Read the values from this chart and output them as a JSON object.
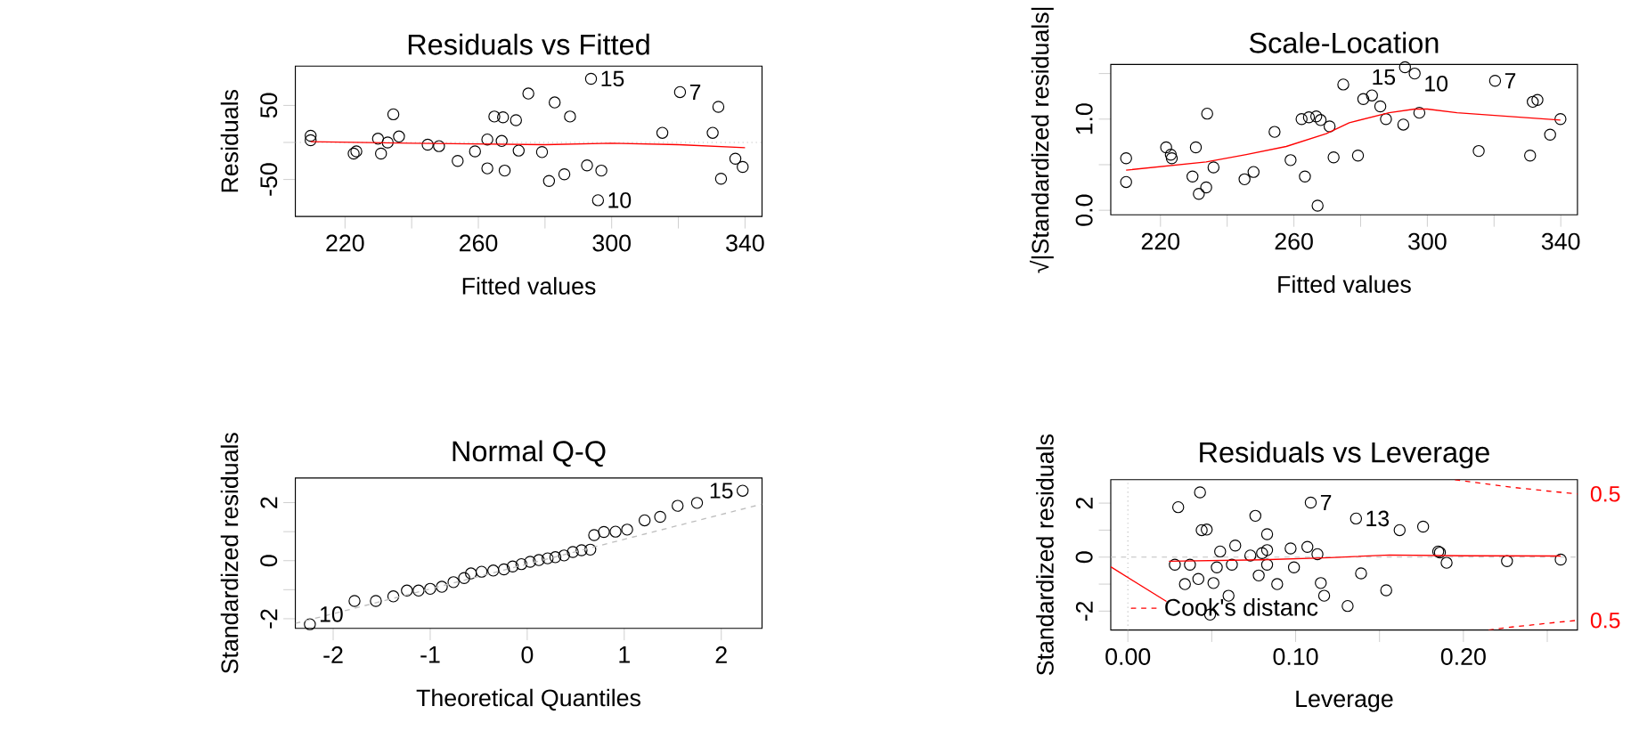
{
  "chart_data": [
    {
      "type": "scatter",
      "title": "Residuals vs Fitted",
      "xlabel": "Fitted values",
      "ylabel": "Residuals",
      "xlim": [
        205.1,
        345.1
      ],
      "ylim": [
        -100,
        103
      ],
      "xticks": [
        220,
        {
          "value": 240,
          "label": null
        },
        260,
        {
          "value": 280,
          "label": null
        },
        300,
        {
          "value": 320,
          "label": null
        },
        340
      ],
      "yticks": [
        -50,
        {
          "value": 0,
          "label": null
        },
        50
      ],
      "ref_lines": [
        {
          "axis": "y",
          "value": 0,
          "color": "#bebebe",
          "line_style": "dotted"
        }
      ],
      "series": [
        {
          "marker": "circle",
          "color": "#000000",
          "x": [
            209.7,
            209.7,
            222.6,
            223.4,
            229.9,
            230.8,
            232.8,
            234.5,
            236.2,
            244.8,
            248.2,
            253.8,
            259,
            262.7,
            262.7,
            264.8,
            267,
            267.4,
            267.9,
            271.3,
            272.1,
            275,
            279.1,
            281.2,
            282.9,
            285.8,
            287.5,
            292.6,
            293.8,
            296.9,
            295.9,
            315.2,
            320.5,
            330.3,
            332,
            332.8,
            337.1,
            339.3
          ],
          "values": [
            9,
            3,
            -15,
            -12,
            5,
            -15,
            0,
            38,
            8,
            -3,
            -5,
            -25,
            -12,
            -35,
            4,
            35,
            2,
            34,
            -38,
            30,
            -11,
            66,
            -13,
            -52,
            54,
            -43,
            35,
            -31,
            86,
            -38,
            -78,
            13,
            68,
            13,
            48,
            -49,
            -22,
            -33
          ]
        },
        {
          "type": "line",
          "color": "#ff0000",
          "x": [
            209.7,
            240,
            260,
            280,
            300,
            320,
            340
          ],
          "values": [
            1,
            -1,
            -2,
            -3,
            -1,
            -3,
            -7
          ]
        }
      ],
      "annotations": [
        {
          "text": "15",
          "x": 293.8,
          "y": 86
        },
        {
          "text": "7",
          "x": 320.5,
          "y": 68
        },
        {
          "text": "10",
          "x": 295.9,
          "y": -78
        }
      ]
    },
    {
      "type": "scatter",
      "title": "Scale-Location",
      "xlabel": "Fitted values",
      "ylabel": "√|Standardized residuals|",
      "xlim": [
        205.1,
        345
      ],
      "ylim": [
        -0.05,
        1.6
      ],
      "xticks": [
        220,
        {
          "value": 240,
          "label": null
        },
        260,
        {
          "value": 280,
          "label": null
        },
        300,
        {
          "value": 320,
          "label": null
        },
        340
      ],
      "yticks": [
        {
          "value": 0,
          "label": "0.0"
        },
        {
          "value": 0.5,
          "label": null
        },
        {
          "value": 1,
          "label": "1.0"
        },
        {
          "value": 1.5,
          "label": null
        }
      ],
      "series": [
        {
          "marker": "circle",
          "color": "#000000",
          "x": [
            209.7,
            209.7,
            221.7,
            223.1,
            223.4,
            229.6,
            230.6,
            231.5,
            233.7,
            234,
            235.9,
            245.2,
            247.9,
            254.2,
            259,
            263.3,
            262.3,
            264.5,
            266.7,
            267.1,
            268,
            270.7,
            271.9,
            274.8,
            279.2,
            280.8,
            283.4,
            285.9,
            287.6,
            292.8,
            293.3,
            296.2,
            297.6,
            315.4,
            320.3,
            330.8,
            331.6,
            333,
            336.8,
            339.9
          ],
          "values": [
            0.57,
            0.31,
            0.69,
            0.61,
            0.57,
            0.37,
            0.69,
            0.18,
            0.25,
            1.06,
            0.47,
            0.34,
            0.42,
            0.86,
            0.55,
            0.37,
            1.0,
            1.02,
            1.03,
            0.05,
            0.99,
            0.92,
            0.58,
            1.38,
            0.6,
            1.22,
            1.26,
            1.14,
            1.0,
            0.94,
            1.57,
            1.5,
            1.07,
            0.65,
            1.42,
            0.6,
            1.19,
            1.21,
            0.83,
            1.0
          ]
        },
        {
          "type": "line",
          "color": "#ff0000",
          "x": [
            209.7,
            233.7,
            245.7,
            257.7,
            269.7,
            276.6,
            288.5,
            296.2,
            300,
            308.9,
            339.9
          ],
          "values": [
            0.44,
            0.53,
            0.61,
            0.7,
            0.84,
            0.96,
            1.07,
            1.11,
            1.11,
            1.07,
            0.99
          ]
        }
      ],
      "annotations": [
        {
          "text": "15",
          "x": 293.3,
          "y": 1.57
        },
        {
          "text": "10",
          "x": 296.2,
          "y": 1.5
        },
        {
          "text": "7",
          "x": 320.3,
          "y": 1.42
        }
      ]
    },
    {
      "type": "scatter",
      "title": "Normal Q-Q",
      "xlabel": "Theoretical Quantiles",
      "ylabel": "Standardized residuals",
      "xlim": [
        -2.39,
        2.42
      ],
      "ylim": [
        -2.33,
        2.85
      ],
      "xticks": [
        -2,
        -1,
        0,
        1,
        2
      ],
      "yticks": [
        -2,
        {
          "value": -1,
          "label": null
        },
        0,
        {
          "value": 1,
          "label": null
        },
        2
      ],
      "series": [
        {
          "marker": "circle",
          "color": "#000000",
          "x": [
            -2.24,
            -1.78,
            -1.56,
            -1.38,
            -1.24,
            -1.12,
            -1.0,
            -0.88,
            -0.76,
            -0.65,
            -0.58,
            -0.47,
            -0.35,
            -0.24,
            -0.15,
            -0.06,
            0.03,
            0.12,
            0.21,
            0.29,
            0.38,
            0.47,
            0.56,
            0.65,
            0.69,
            0.79,
            0.91,
            1.03,
            1.21,
            1.37,
            1.55,
            1.75,
            2.22
          ],
          "values": [
            -2.19,
            -1.39,
            -1.39,
            -1.23,
            -1.03,
            -1.03,
            -0.97,
            -0.9,
            -0.74,
            -0.6,
            -0.44,
            -0.38,
            -0.34,
            -0.3,
            -0.2,
            -0.12,
            -0.04,
            0.02,
            0.08,
            0.12,
            0.18,
            0.3,
            0.36,
            0.38,
            0.88,
            0.99,
            1.0,
            1.07,
            1.39,
            1.51,
            1.89,
            1.99,
            2.41
          ]
        },
        {
          "type": "line",
          "color": "#bebebe",
          "line_style": "dashed",
          "x": [
            -2.39,
            2.42
          ],
          "values": [
            -2.16,
            1.95
          ]
        }
      ],
      "annotations": [
        {
          "text": "15",
          "x": 2.22,
          "y": 2.41
        },
        {
          "text": "10",
          "x": -2.24,
          "y": -2.19
        }
      ]
    },
    {
      "type": "scatter",
      "title": "Residuals vs Leverage",
      "xlabel": "Leverage",
      "ylabel": "Standardized residuals",
      "legend": "bottom left",
      "xlim": [
        -0.0102,
        0.268
      ],
      "ylim": [
        -2.7,
        2.87
      ],
      "xticks": [
        {
          "value": 0,
          "label": "0.00"
        },
        {
          "value": 0.05,
          "label": null
        },
        {
          "value": 0.1,
          "label": "0.10"
        },
        {
          "value": 0.15,
          "label": null
        },
        {
          "value": 0.2,
          "label": "0.20"
        },
        {
          "value": 0.25,
          "label": null
        }
      ],
      "yticks": [
        -2,
        {
          "value": -1,
          "label": null
        },
        0,
        {
          "value": 1,
          "label": null
        },
        2
      ],
      "ref_lines": [
        {
          "axis": "y",
          "value": 0,
          "color": "#bebebe",
          "line_style": "dashed"
        },
        {
          "axis": "x",
          "value": 0,
          "color": "#bebebe",
          "line_style": "dotted"
        }
      ],
      "series": [
        {
          "marker": "circle",
          "color": "#000000",
          "x": [
            0.03,
            0.043,
            0.028,
            0.037,
            0.034,
            0.042,
            0.044,
            0.047,
            0.049,
            0.051,
            0.053,
            0.055,
            0.06,
            0.062,
            0.064,
            0.073,
            0.076,
            0.078,
            0.08,
            0.083,
            0.083,
            0.083,
            0.089,
            0.097,
            0.099,
            0.107,
            0.109,
            0.113,
            0.115,
            0.117,
            0.131,
            0.136,
            0.139,
            0.154,
            0.162,
            0.176,
            0.185,
            0.186,
            0.19,
            0.226,
            0.258
          ],
          "values": [
            1.85,
            2.4,
            -0.28,
            -0.28,
            -1.0,
            -0.81,
            1.0,
            1.02,
            -2.13,
            -0.96,
            -0.38,
            0.21,
            -1.43,
            -0.28,
            0.43,
            0.06,
            1.53,
            -0.68,
            0.15,
            0.85,
            -0.28,
            0.26,
            -1.0,
            0.32,
            -0.38,
            0.38,
            2.02,
            0.11,
            -0.96,
            -1.43,
            -1.81,
            1.43,
            -0.6,
            -1.23,
            1.0,
            1.13,
            0.21,
            0.17,
            -0.21,
            -0.15,
            -0.09
          ]
        },
        {
          "type": "line",
          "color": "#ff0000",
          "x": [
            0.0245,
            0.08,
            0.12,
            0.156,
            0.2,
            0.258
          ],
          "values": [
            -0.15,
            -0.1,
            -0.02,
            0.08,
            0.05,
            0.04
          ]
        },
        {
          "type": "line",
          "color": "#ff0000",
          "x": [
            -0.0102,
            0.023
          ],
          "values": [
            -0.36,
            -1.64
          ]
        },
        {
          "type": "line",
          "name": "Cook's distanc",
          "color": "#ff0000",
          "line_style": "dashed",
          "x": [
            0.195,
            0.21,
            0.22,
            0.23,
            0.24,
            0.25,
            0.26,
            0.268
          ],
          "values": [
            2.87,
            2.74,
            2.66,
            2.58,
            2.52,
            2.45,
            2.39,
            2.34
          ]
        },
        {
          "type": "line",
          "color": "#ff0000",
          "line_style": "dashed",
          "x": [
            0.215,
            0.23,
            0.24,
            0.25,
            0.26,
            0.268
          ],
          "values": [
            -2.7,
            -2.58,
            -2.52,
            -2.45,
            -2.39,
            -2.34
          ]
        }
      ],
      "annotations": [
        {
          "text": "7",
          "x": 0.109,
          "y": 2.02
        },
        {
          "text": "13",
          "x": 0.136,
          "y": 1.43
        },
        {
          "text": "0.5",
          "x": 0.268,
          "y": 2.34
        },
        {
          "text": "0.5",
          "x": 0.268,
          "y": -2.34
        }
      ]
    }
  ]
}
